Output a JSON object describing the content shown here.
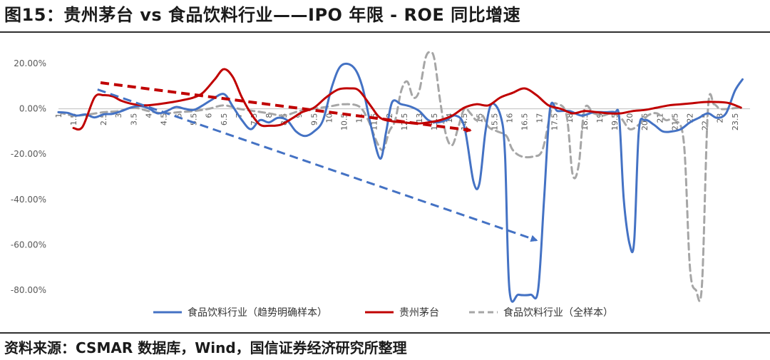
{
  "figure": {
    "title": "图15：贵州茅台 vs 食品饮料行业——IPO 年限 - ROE 同比增速",
    "source": "资料来源：CSMAR 数据库，Wind，国信证券经济研究所整理"
  },
  "chart_data": {
    "type": "line",
    "title": "",
    "xlabel": "",
    "ylabel": "",
    "xlim": [
      1,
      24
    ],
    "ylim": [
      -80,
      20
    ],
    "yticks": [
      20,
      0,
      -20,
      -40,
      -60,
      -80
    ],
    "ytick_labels": [
      "20.00%",
      "0.00%",
      "-20.00%",
      "-40.00%",
      "-60.00%",
      "-80.00%"
    ],
    "xticks": [
      1,
      1.5,
      2,
      2.5,
      3,
      3.5,
      4,
      4.5,
      5,
      5.5,
      6,
      6.5,
      7,
      7.5,
      8,
      8.5,
      9,
      9.5,
      10,
      10.5,
      11,
      11.5,
      12,
      12.5,
      13,
      13.5,
      14,
      14.5,
      15,
      15.5,
      16,
      16.5,
      17,
      17.5,
      18,
      18.5,
      19,
      19.5,
      20,
      20.5,
      21,
      21.5,
      22,
      22.5,
      23,
      23.5
    ],
    "grid": false,
    "legend_position": "bottom",
    "series": [
      {
        "name": "食品饮料行业（趋势明确样本）",
        "color": "#4472C4",
        "style": "solid",
        "points": [
          [
            1,
            -1.5
          ],
          [
            1.3,
            -1.8
          ],
          [
            1.6,
            -3
          ],
          [
            1.9,
            -2.5
          ],
          [
            2.2,
            -3.8
          ],
          [
            2.5,
            -2.5
          ],
          [
            2.8,
            -2.2
          ],
          [
            3.1,
            -1
          ],
          [
            3.4,
            0.5
          ],
          [
            3.7,
            1.2
          ],
          [
            4,
            0.2
          ],
          [
            4.3,
            -2
          ],
          [
            4.6,
            -1
          ],
          [
            4.9,
            0.8
          ],
          [
            5.2,
            0
          ],
          [
            5.5,
            -0.5
          ],
          [
            5.8,
            1.5
          ],
          [
            6.1,
            4
          ],
          [
            6.5,
            6.5
          ],
          [
            6.8,
            1
          ],
          [
            7.1,
            -5
          ],
          [
            7.4,
            -9
          ],
          [
            7.7,
            -5
          ],
          [
            8,
            -6
          ],
          [
            8.3,
            -4
          ],
          [
            8.6,
            -5
          ],
          [
            8.9,
            -10
          ],
          [
            9.2,
            -12
          ],
          [
            9.5,
            -10
          ],
          [
            9.8,
            -5
          ],
          [
            10.1,
            10
          ],
          [
            10.4,
            19
          ],
          [
            10.8,
            18.5
          ],
          [
            11.1,
            10
          ],
          [
            11.4,
            -8
          ],
          [
            11.7,
            -22
          ],
          [
            11.9,
            -10
          ],
          [
            12.1,
            3
          ],
          [
            12.4,
            2
          ],
          [
            12.7,
            1
          ],
          [
            13,
            -1
          ],
          [
            13.3,
            -5
          ],
          [
            13.6,
            -6
          ],
          [
            13.9,
            -5
          ],
          [
            14.2,
            -3
          ],
          [
            14.5,
            -8
          ],
          [
            14.8,
            -32
          ],
          [
            15.0,
            -33
          ],
          [
            15.2,
            -10
          ],
          [
            15.4,
            2
          ],
          [
            15.7,
            -3
          ],
          [
            15.85,
            -20
          ],
          [
            16.0,
            -80
          ],
          [
            16.3,
            -82
          ],
          [
            16.7,
            -82
          ],
          [
            16.95,
            -80
          ],
          [
            17.15,
            -40
          ],
          [
            17.35,
            0
          ],
          [
            17.6,
            -1
          ],
          [
            18,
            -1
          ],
          [
            18.4,
            -3
          ],
          [
            18.8,
            -1.5
          ],
          [
            19.2,
            -1.5
          ],
          [
            19.5,
            -1.5
          ],
          [
            19.65,
            -4
          ],
          [
            19.8,
            -40
          ],
          [
            20,
            -60
          ],
          [
            20.15,
            -58
          ],
          [
            20.3,
            -10
          ],
          [
            20.5,
            -5
          ],
          [
            20.8,
            -7
          ],
          [
            21.1,
            -10
          ],
          [
            21.4,
            -10
          ],
          [
            21.7,
            -9
          ],
          [
            22,
            -6
          ],
          [
            22.3,
            -4
          ],
          [
            22.6,
            -2
          ],
          [
            22.9,
            -4
          ],
          [
            23.2,
            -2
          ],
          [
            23.5,
            8
          ],
          [
            23.75,
            13
          ]
        ]
      },
      {
        "name": "贵州茅台",
        "color": "#C00000",
        "style": "solid",
        "points": [
          [
            1.5,
            -8.5
          ],
          [
            1.8,
            -8
          ],
          [
            2.2,
            5
          ],
          [
            2.5,
            6
          ],
          [
            2.8,
            5.5
          ],
          [
            3.1,
            3.5
          ],
          [
            3.5,
            2
          ],
          [
            3.9,
            1.5
          ],
          [
            4.3,
            2
          ],
          [
            4.8,
            3
          ],
          [
            5.2,
            4
          ],
          [
            5.5,
            5
          ],
          [
            5.8,
            7
          ],
          [
            6.2,
            13
          ],
          [
            6.5,
            17.5
          ],
          [
            6.8,
            14
          ],
          [
            7.1,
            5
          ],
          [
            7.4,
            -2
          ],
          [
            7.7,
            -7
          ],
          [
            8,
            -7.5
          ],
          [
            8.4,
            -7
          ],
          [
            8.8,
            -4
          ],
          [
            9.1,
            -1.5
          ],
          [
            9.5,
            0.5
          ],
          [
            9.9,
            5
          ],
          [
            10.3,
            8.5
          ],
          [
            10.7,
            9
          ],
          [
            11,
            8
          ],
          [
            11.4,
            1
          ],
          [
            11.7,
            -4
          ],
          [
            12.1,
            -5.5
          ],
          [
            12.5,
            -6
          ],
          [
            12.9,
            -6.5
          ],
          [
            13.3,
            -6
          ],
          [
            13.7,
            -5
          ],
          [
            14.1,
            -3
          ],
          [
            14.5,
            0.5
          ],
          [
            14.9,
            2
          ],
          [
            15.3,
            1.5
          ],
          [
            15.7,
            5
          ],
          [
            16.1,
            7
          ],
          [
            16.5,
            9
          ],
          [
            16.9,
            6
          ],
          [
            17.3,
            1.5
          ],
          [
            17.7,
            0
          ],
          [
            18.1,
            -2
          ],
          [
            18.5,
            -1
          ],
          [
            18.9,
            -1.5
          ],
          [
            19.3,
            -2
          ],
          [
            19.7,
            -2
          ],
          [
            20.1,
            -1
          ],
          [
            20.5,
            -0.5
          ],
          [
            20.9,
            0.5
          ],
          [
            21.3,
            1.5
          ],
          [
            21.7,
            2
          ],
          [
            22.1,
            2.5
          ],
          [
            22.5,
            3
          ],
          [
            22.9,
            3
          ],
          [
            23.3,
            2.5
          ],
          [
            23.7,
            0.5
          ]
        ]
      },
      {
        "name": "食品饮料行业（全样本）",
        "color": "#A6A6A6",
        "style": "dashed",
        "points": [
          [
            1,
            -1.5
          ],
          [
            1.5,
            -3
          ],
          [
            2,
            -2.5
          ],
          [
            2.5,
            -1.5
          ],
          [
            3,
            -1
          ],
          [
            3.5,
            0.5
          ],
          [
            4,
            -1
          ],
          [
            4.5,
            -2
          ],
          [
            5,
            -1.5
          ],
          [
            5.5,
            -1
          ],
          [
            6,
            0
          ],
          [
            6.5,
            1.5
          ],
          [
            7,
            0
          ],
          [
            7.5,
            -1
          ],
          [
            8,
            -2
          ],
          [
            8.5,
            -3
          ],
          [
            9,
            -1
          ],
          [
            9.5,
            0
          ],
          [
            10,
            1
          ],
          [
            10.5,
            2
          ],
          [
            11,
            1
          ],
          [
            11.3,
            -5
          ],
          [
            11.6,
            -15
          ],
          [
            11.8,
            -18
          ],
          [
            12,
            -10
          ],
          [
            12.2,
            -5
          ],
          [
            12.4,
            8
          ],
          [
            12.6,
            12
          ],
          [
            12.8,
            5
          ],
          [
            13,
            8
          ],
          [
            13.2,
            22
          ],
          [
            13.35,
            25
          ],
          [
            13.5,
            22
          ],
          [
            13.7,
            3
          ],
          [
            13.9,
            -12
          ],
          [
            14.1,
            -16
          ],
          [
            14.3,
            -8
          ],
          [
            14.5,
            0
          ],
          [
            14.7,
            -2
          ],
          [
            14.9,
            -5
          ],
          [
            15.1,
            -3
          ],
          [
            15.3,
            -8
          ],
          [
            15.6,
            -10
          ],
          [
            15.9,
            -12
          ],
          [
            16.1,
            -18
          ],
          [
            16.4,
            -21
          ],
          [
            16.8,
            -21
          ],
          [
            17.1,
            -18
          ],
          [
            17.4,
            0
          ],
          [
            17.6,
            2
          ],
          [
            17.9,
            -3
          ],
          [
            18.1,
            -29
          ],
          [
            18.3,
            -25
          ],
          [
            18.5,
            0
          ],
          [
            18.8,
            -2
          ],
          [
            19.1,
            -3
          ],
          [
            19.4,
            -2
          ],
          [
            19.7,
            -4
          ],
          [
            20,
            -9
          ],
          [
            20.3,
            -7
          ],
          [
            20.6,
            -3
          ],
          [
            20.9,
            -2
          ],
          [
            21.2,
            -5
          ],
          [
            21.5,
            -5
          ],
          [
            21.8,
            -15
          ],
          [
            22,
            -70
          ],
          [
            22.2,
            -80
          ],
          [
            22.4,
            -78
          ],
          [
            22.6,
            0
          ],
          [
            22.8,
            2
          ],
          [
            23,
            0
          ],
          [
            23.3,
            0
          ],
          [
            23.6,
            0.5
          ]
        ]
      }
    ],
    "trend_arrows": [
      {
        "color": "#C00000",
        "from": [
          2.4,
          11.5
        ],
        "to": [
          14.7,
          -9.5
        ]
      },
      {
        "color": "#4472C4",
        "from": [
          2.3,
          8.5
        ],
        "to": [
          16.9,
          -58
        ]
      }
    ]
  }
}
